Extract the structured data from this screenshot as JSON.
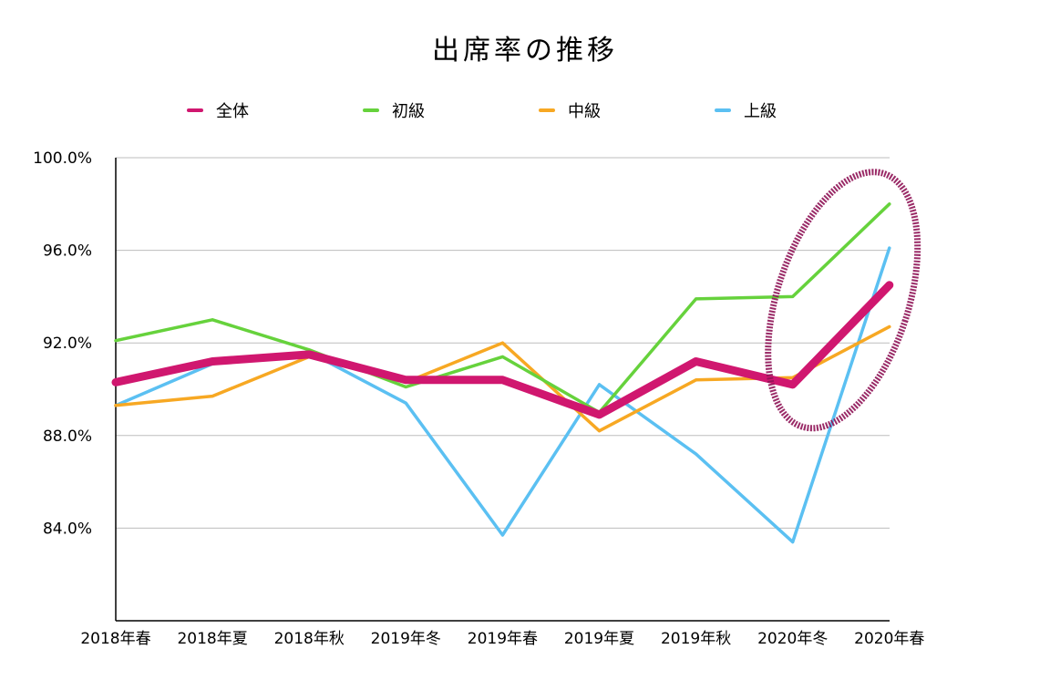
{
  "chart_data": {
    "type": "line",
    "title": "出席率の推移",
    "xlabel": "",
    "ylabel": "",
    "categories": [
      "2018年春",
      "2018年夏",
      "2018年秋",
      "2019年冬",
      "2019年春",
      "2019年夏",
      "2019年秋",
      "2020年冬",
      "2020年春"
    ],
    "ylim": [
      80.0,
      100.0
    ],
    "yticks": [
      84.0,
      88.0,
      92.0,
      96.0,
      100.0
    ],
    "ytick_labels": [
      "84.0%",
      "88.0%",
      "92.0%",
      "96.0%",
      "100.0%"
    ],
    "grid": true,
    "legend_position": "top",
    "series": [
      {
        "name": "全体",
        "color": "#d0176f",
        "emphasis": true,
        "values": [
          90.3,
          91.2,
          91.5,
          90.4,
          90.4,
          88.9,
          91.2,
          90.2,
          94.5
        ]
      },
      {
        "name": "初級",
        "color": "#66d23c",
        "values": [
          92.1,
          93.0,
          91.7,
          90.1,
          91.4,
          89.0,
          93.9,
          94.0,
          98.0
        ]
      },
      {
        "name": "中級",
        "color": "#f7a823",
        "values": [
          89.3,
          89.7,
          91.4,
          90.3,
          92.0,
          88.2,
          90.4,
          90.5,
          92.7
        ]
      },
      {
        "name": "上級",
        "color": "#5bc0f2",
        "values": [
          89.3,
          91.1,
          91.6,
          89.4,
          83.7,
          90.2,
          87.2,
          83.4,
          96.1
        ]
      }
    ],
    "annotation": {
      "shape": "ellipse",
      "color": "#8f1457",
      "around_category": "2020年冬"
    }
  }
}
